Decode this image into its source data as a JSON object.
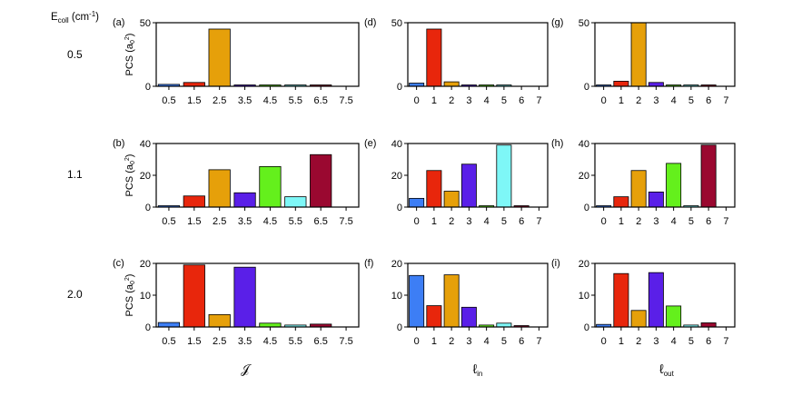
{
  "figure": {
    "ecoll_label_main": "E",
    "ecoll_label_sub": "coll",
    "ecoll_label_unit": " (cm",
    "ecoll_label_exp": "-1",
    "ecoll_label_close": ")",
    "energies": [
      "0.5",
      "1.1",
      "2.0"
    ],
    "ylabel_main": "PCS (a",
    "ylabel_sub": "0",
    "ylabel_sup": "2",
    "ylabel_close": ")",
    "col_xlabels": [
      {
        "main": "𝒥",
        "sub": ""
      },
      {
        "main": "ℓ",
        "sub": "in"
      },
      {
        "main": "ℓ",
        "sub": "out"
      }
    ]
  },
  "colors": [
    "#3d7ef5",
    "#e8260c",
    "#e6a00a",
    "#5a1fe8",
    "#64f01c",
    "#7ef7f7",
    "#9a0830",
    "#cccccc"
  ],
  "chart_data": [
    {
      "type": "bar",
      "panel": "(a)",
      "row": 0,
      "col": 0,
      "categories": [
        "0.5",
        "1.5",
        "2.5",
        "3.5",
        "4.5",
        "5.5",
        "6.5",
        "7.5"
      ],
      "values": [
        1.5,
        3,
        45,
        1,
        0.2,
        0.2,
        0.1,
        0
      ],
      "yticks": [
        0,
        50
      ],
      "ylim": [
        0,
        50
      ]
    },
    {
      "type": "bar",
      "panel": "(b)",
      "row": 1,
      "col": 0,
      "categories": [
        "0.5",
        "1.5",
        "2.5",
        "3.5",
        "4.5",
        "5.5",
        "6.5",
        "7.5"
      ],
      "values": [
        0.8,
        7,
        23.5,
        9,
        25.5,
        6.5,
        33,
        0
      ],
      "yticks": [
        0,
        20,
        40
      ],
      "ylim": [
        0,
        40
      ]
    },
    {
      "type": "bar",
      "panel": "(c)",
      "row": 2,
      "col": 0,
      "categories": [
        "0.5",
        "1.5",
        "2.5",
        "3.5",
        "4.5",
        "5.5",
        "6.5",
        "7.5"
      ],
      "values": [
        1.4,
        19.5,
        3.9,
        18.8,
        1.2,
        0.6,
        0.9,
        0
      ],
      "yticks": [
        0,
        10,
        20
      ],
      "ylim": [
        0,
        20
      ]
    },
    {
      "type": "bar",
      "panel": "(d)",
      "row": 0,
      "col": 1,
      "categories": [
        "0",
        "1",
        "2",
        "3",
        "4",
        "5",
        "6",
        "7"
      ],
      "values": [
        2.5,
        45,
        3.5,
        0.3,
        0.1,
        0.1,
        0,
        0
      ],
      "yticks": [
        0,
        50
      ],
      "ylim": [
        0,
        50
      ]
    },
    {
      "type": "bar",
      "panel": "(e)",
      "row": 1,
      "col": 1,
      "categories": [
        "0",
        "1",
        "2",
        "3",
        "4",
        "5",
        "6",
        "7"
      ],
      "values": [
        5.5,
        23,
        10,
        27,
        0.8,
        39,
        0.2,
        0
      ],
      "yticks": [
        0,
        20,
        40
      ],
      "ylim": [
        0,
        40
      ]
    },
    {
      "type": "bar",
      "panel": "(f)",
      "row": 2,
      "col": 1,
      "categories": [
        "0",
        "1",
        "2",
        "3",
        "4",
        "5",
        "6",
        "7"
      ],
      "values": [
        16.2,
        6.7,
        16.4,
        6.2,
        0.6,
        1.2,
        0.1,
        0
      ],
      "yticks": [
        0,
        10,
        20
      ],
      "ylim": [
        0,
        20
      ]
    },
    {
      "type": "bar",
      "panel": "(g)",
      "row": 0,
      "col": 2,
      "categories": [
        "0",
        "1",
        "2",
        "3",
        "4",
        "5",
        "6",
        "7"
      ],
      "values": [
        0.5,
        4,
        50,
        3,
        0.3,
        0.2,
        0.1,
        0
      ],
      "yticks": [
        0,
        50
      ],
      "ylim": [
        0,
        50
      ]
    },
    {
      "type": "bar",
      "panel": "(h)",
      "row": 1,
      "col": 2,
      "categories": [
        "0",
        "1",
        "2",
        "3",
        "4",
        "5",
        "6",
        "7"
      ],
      "values": [
        0.2,
        6.5,
        23,
        9.5,
        27.5,
        0.8,
        39,
        0
      ],
      "yticks": [
        0,
        20,
        40
      ],
      "ylim": [
        0,
        40
      ]
    },
    {
      "type": "bar",
      "panel": "(i)",
      "row": 2,
      "col": 2,
      "categories": [
        "0",
        "1",
        "2",
        "3",
        "4",
        "5",
        "6",
        "7"
      ],
      "values": [
        0.8,
        16.8,
        5.2,
        17.1,
        6.6,
        0.6,
        1.3,
        0
      ],
      "yticks": [
        0,
        10,
        20
      ],
      "ylim": [
        0,
        20
      ]
    }
  ]
}
